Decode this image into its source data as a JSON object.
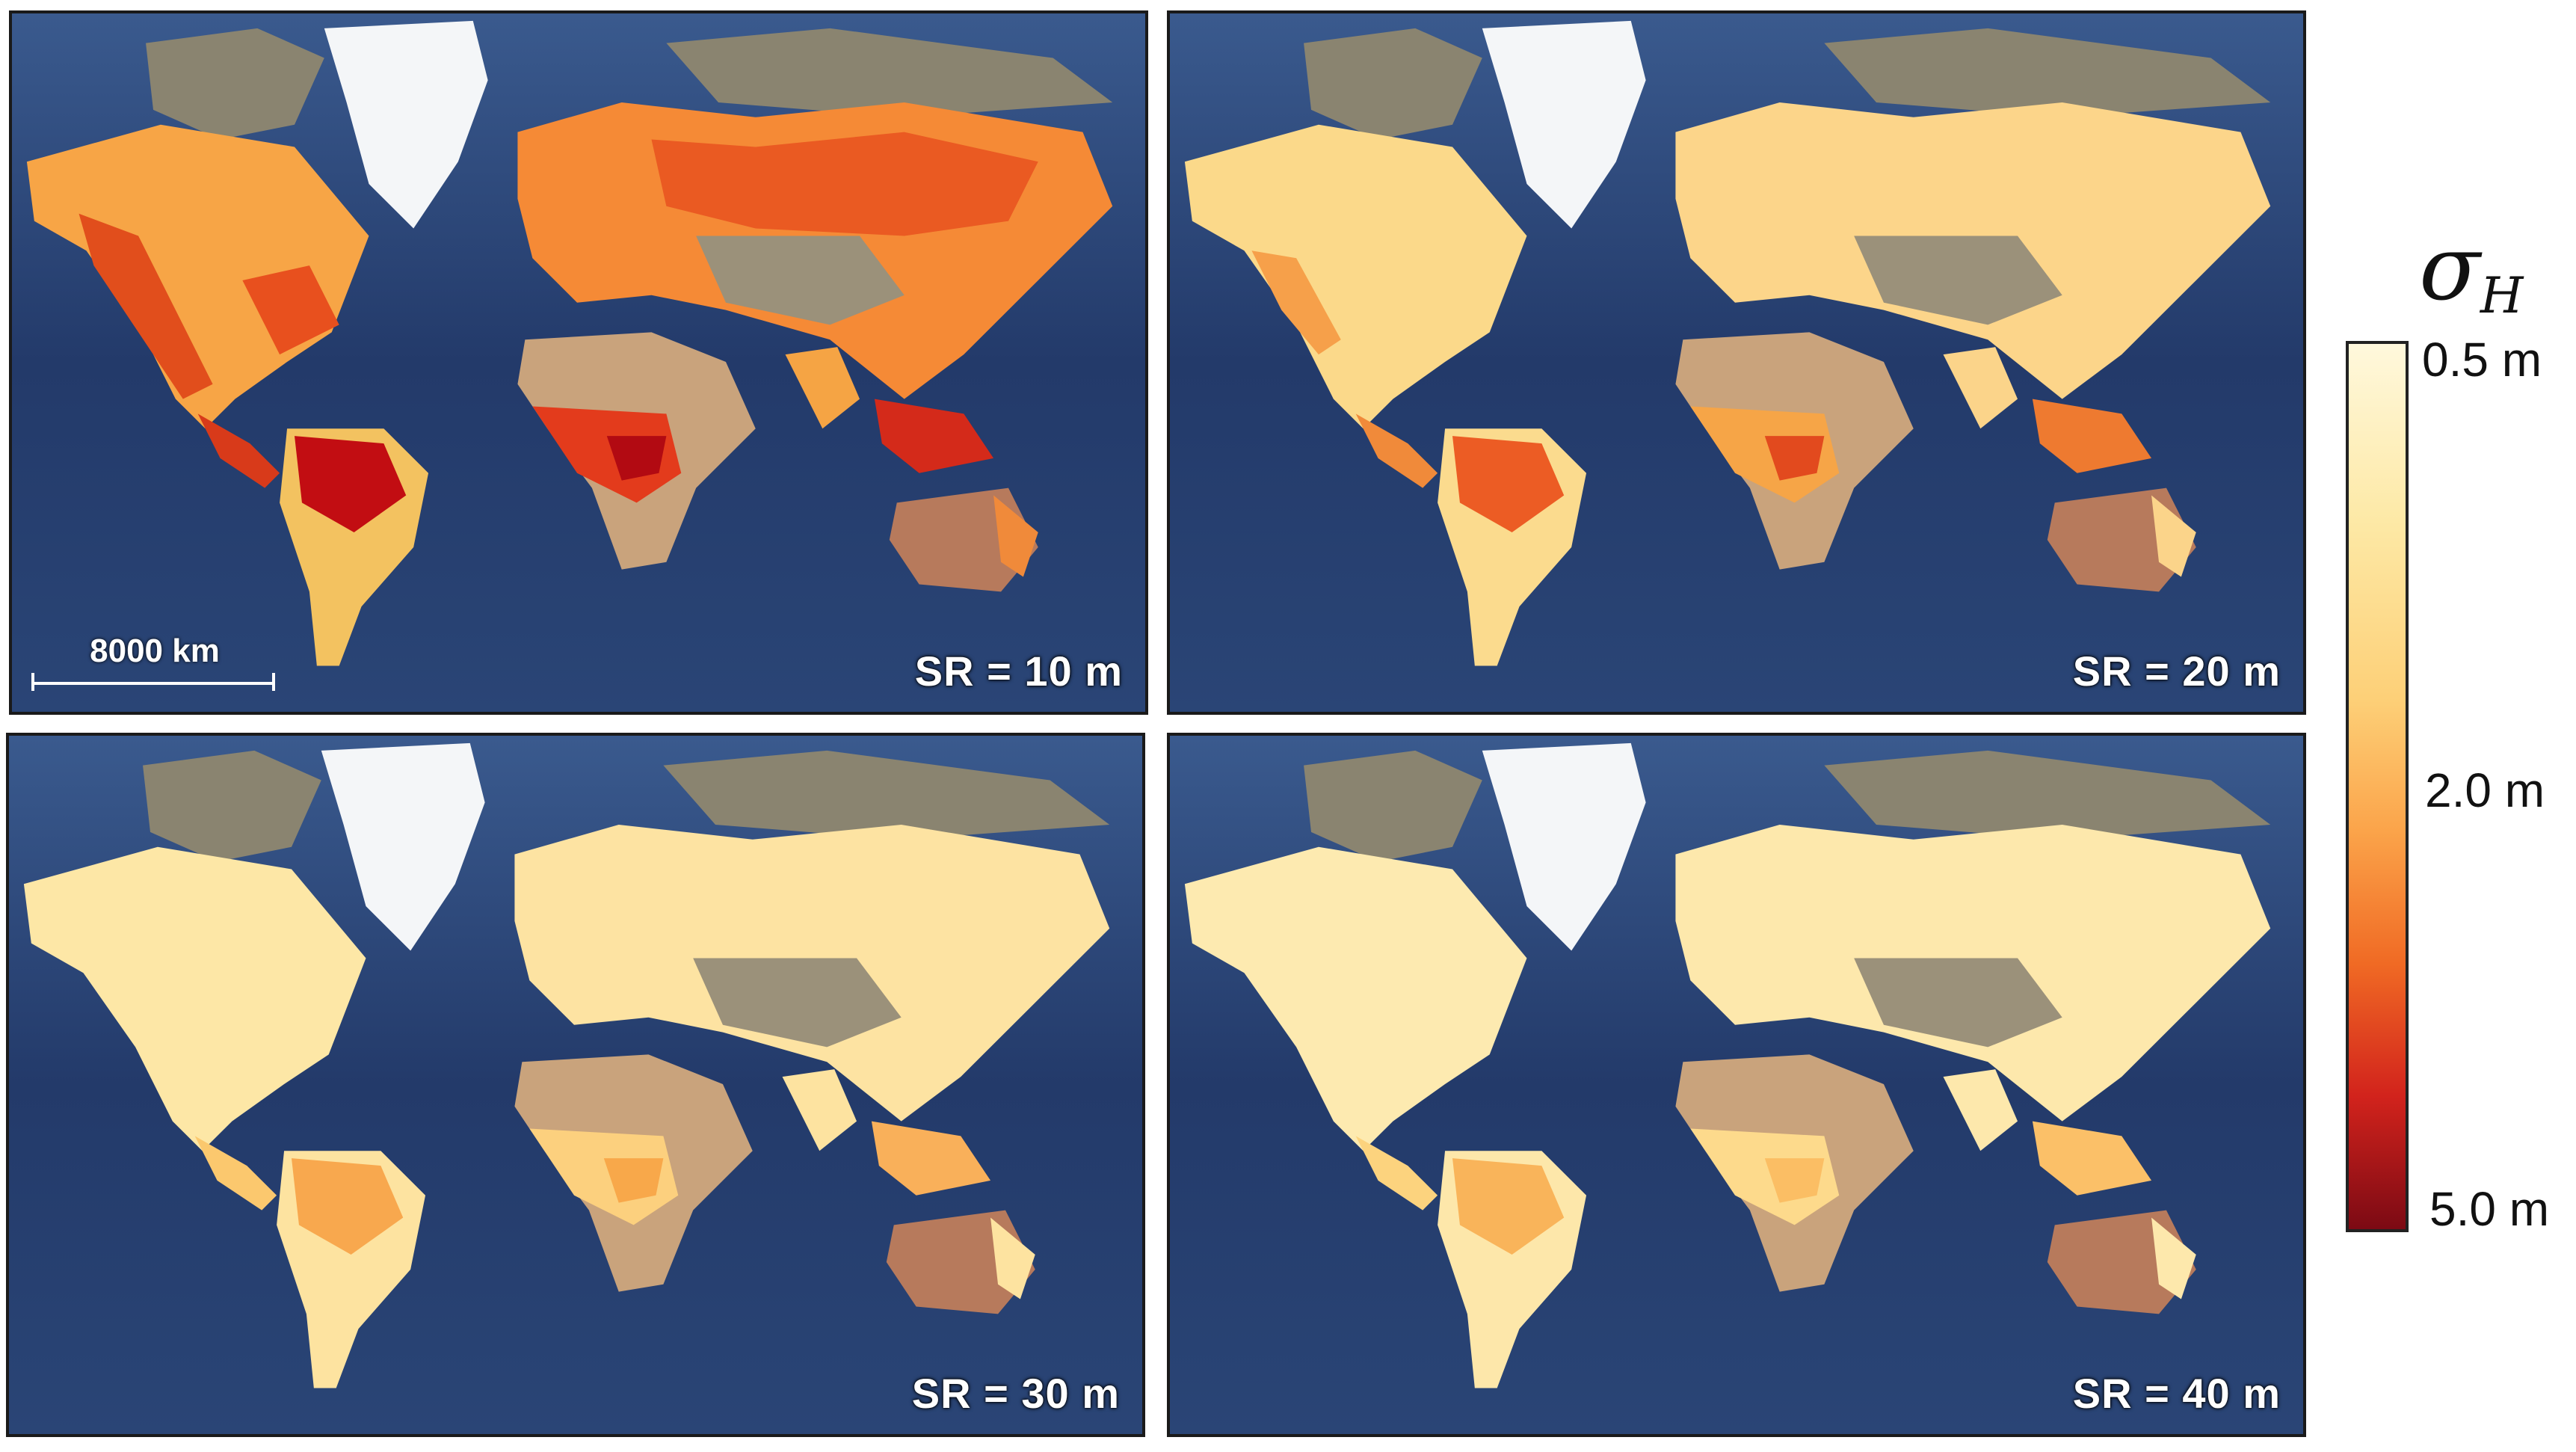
{
  "panels": [
    {
      "label": "SR = 10 m",
      "intensity": "high"
    },
    {
      "label": "SR = 20 m",
      "intensity": "medium"
    },
    {
      "label": "SR = 30 m",
      "intensity": "low"
    },
    {
      "label": "SR = 40 m",
      "intensity": "lowest"
    }
  ],
  "scale_bar": {
    "label": "8000 km"
  },
  "legend": {
    "symbol": "σ",
    "subscript": "H",
    "ticks": [
      "0.5 m",
      "2.0 m",
      "5.0 m"
    ],
    "colors": [
      "#fff8dc",
      "#fdd078",
      "#f06a24",
      "#d2231c",
      "#7c0a14"
    ]
  },
  "colors": {
    "ocean": "#2b4474",
    "land_bare": "#8a8470",
    "ice": "#f4f6f8",
    "desert": "#c9a37c"
  }
}
